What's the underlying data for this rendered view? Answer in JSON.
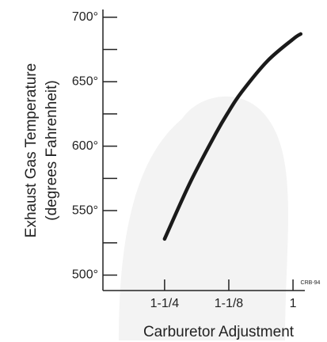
{
  "chart_data": {
    "type": "line",
    "y_label": [
      "Exhaust Gas Temperature",
      "(degrees Fahrenheit)"
    ],
    "x_label": "Carburetor Adjustment",
    "annotation": "CRB-94",
    "x": [
      1.25,
      1.2,
      1.15,
      1.125,
      1.1,
      1.05,
      1.0,
      0.985
    ],
    "values": [
      528,
      572,
      610,
      627,
      642,
      666,
      683,
      687
    ],
    "color": "#1a1a1a",
    "xlim": [
      1.37,
      0.977
    ],
    "xticks": [
      {
        "value": 1.25,
        "label": "1-1/4"
      },
      {
        "value": 1.125,
        "label": "1-1/8"
      },
      1
    ],
    "ylim": [
      488,
      706
    ],
    "yticks": [
      {
        "value": 500,
        "label": "500°"
      },
      {
        "value": 550,
        "label": "550°"
      },
      {
        "value": 600,
        "label": "600°"
      },
      {
        "value": 650,
        "label": "650°"
      },
      {
        "value": 700,
        "label": "700°"
      }
    ],
    "minor_yticks": [
      525,
      575,
      625,
      675
    ]
  }
}
